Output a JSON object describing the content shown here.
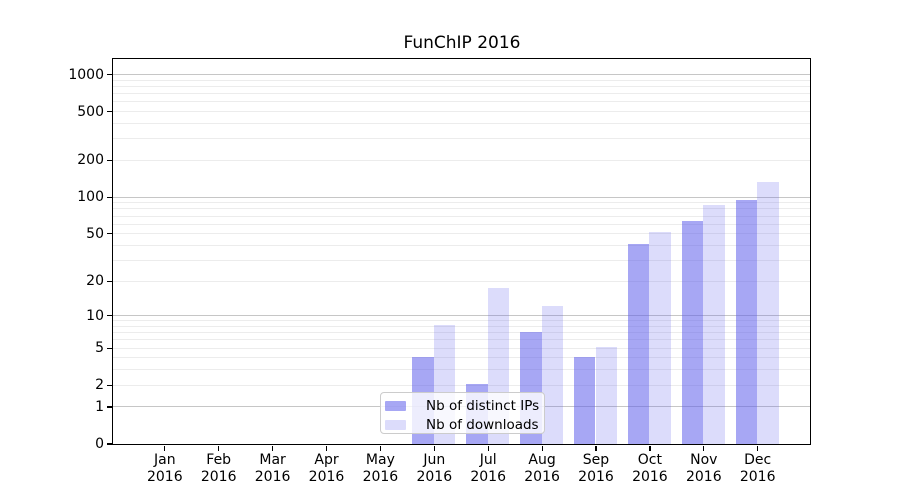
{
  "chart_data": {
    "type": "bar",
    "title": "FunChIP 2016",
    "categories": [
      "Jan 2016",
      "Feb 2016",
      "Mar 2016",
      "Apr 2016",
      "May 2016",
      "Jun 2016",
      "Jul 2016",
      "Aug 2016",
      "Sep 2016",
      "Oct 2016",
      "Nov 2016",
      "Dec 2016"
    ],
    "series": [
      {
        "name": "Nb of distinct IPs",
        "color": "rgba(95,95,235,0.55)",
        "values": [
          0,
          0,
          0,
          0,
          0,
          4,
          2,
          7,
          4,
          40,
          62,
          92
        ]
      },
      {
        "name": "Nb of downloads",
        "color": "rgba(95,95,235,0.22)",
        "values": [
          0,
          0,
          0,
          0,
          0,
          8,
          17,
          12,
          5,
          50,
          85,
          130
        ]
      }
    ],
    "xlabel": "",
    "ylabel": "",
    "y_axis": {
      "scale": "log1p",
      "ticks": [
        0,
        1,
        2,
        5,
        10,
        20,
        50,
        100,
        200,
        500,
        1000
      ],
      "ylim": [
        0,
        1320
      ]
    },
    "grid": true,
    "legend_position": "lower center"
  },
  "legend": {
    "items": [
      "Nb of distinct IPs",
      "Nb of downloads"
    ]
  },
  "colors": {
    "bar_distinct_ips": "rgba(95,95,235,0.55)",
    "bar_downloads": "rgba(95,95,235,0.22)",
    "grid_minor": "#ececec",
    "grid_major": "#c6c6c6",
    "axis_line": "#000000",
    "text": "#000000",
    "legend_border": "#cccccc",
    "legend_background": "rgba(255,255,255,0.8)"
  }
}
